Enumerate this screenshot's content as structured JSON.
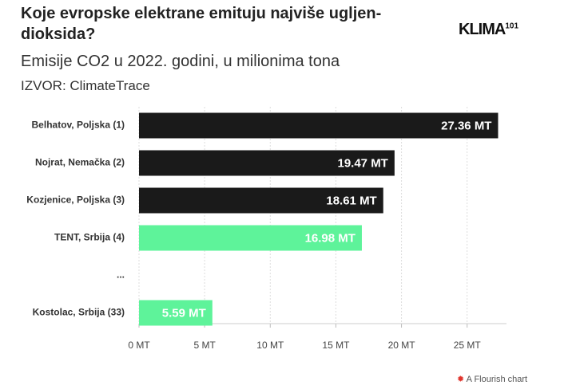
{
  "chart_data": {
    "type": "hbar",
    "title": "Koje evropske elektrane emituju najviše ugljen-dioksida?",
    "subtitle": "Emisije CO2 u 2022. godini, u milionima tona",
    "source": "IZVOR: ClimateTrace",
    "logo": {
      "name": "KLIMA",
      "number": "101"
    },
    "footer": "A Flourish chart",
    "categories": [
      "Belhatov, Poljska (1)",
      "Nojrat, Nemačka (2)",
      "Kozjenice, Poljska (3)",
      "TENT, Srbija (4)",
      "...",
      "Kostolac, Srbija (33)"
    ],
    "values": [
      27.36,
      19.47,
      18.61,
      16.98,
      null,
      5.59
    ],
    "value_labels": [
      "27.36 MT",
      "19.47 MT",
      "18.61 MT",
      "16.98 MT",
      null,
      "5.59 MT"
    ],
    "colors": [
      "#1a1a1a",
      "#1a1a1a",
      "#1a1a1a",
      "#5ef39a",
      null,
      "#5ef39a"
    ],
    "xlim": [
      0,
      28
    ],
    "xticks": [
      {
        "value": 0,
        "label": "0 MT"
      },
      {
        "value": 5,
        "label": "5 MT"
      },
      {
        "value": 10,
        "label": "10 MT"
      },
      {
        "value": 15,
        "label": "15 MT"
      },
      {
        "value": 20,
        "label": "20 MT"
      },
      {
        "value": 25,
        "label": "25 MT"
      }
    ],
    "grid": true
  }
}
